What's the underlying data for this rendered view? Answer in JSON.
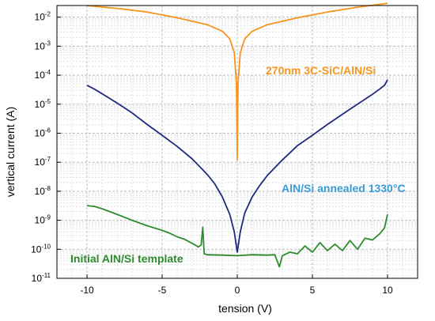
{
  "chart_data": {
    "type": "line",
    "xlabel": "tension (V)",
    "ylabel": "vertical current (A)",
    "xlim": [
      -12,
      12
    ],
    "ylim_log10": [
      -11,
      -1.6
    ],
    "y_scale": "log",
    "grid": true,
    "x_ticks": [
      "-10",
      "-5",
      "0",
      "5",
      "10"
    ],
    "x_tick_values": [
      -10,
      -5,
      0,
      5,
      10
    ],
    "y_tick_exponents": [
      -2,
      -3,
      -4,
      -5,
      -6,
      -7,
      -8,
      -9,
      -10,
      -11
    ],
    "y_tick_base": "10",
    "series": [
      {
        "name": "270nm 3C-SiC/AlN/Si",
        "color": "#f7941d",
        "x": [
          -10,
          -8,
          -6,
          -4,
          -2,
          -1,
          -0.5,
          -0.2,
          -0.05,
          0,
          0.05,
          0.2,
          0.5,
          1,
          2,
          4,
          6,
          8,
          10
        ],
        "y": [
          0.025,
          0.02,
          0.015,
          0.0095,
          0.0055,
          0.0033,
          0.0018,
          0.0006,
          5e-05,
          1.2e-07,
          5e-05,
          0.0006,
          0.0018,
          0.0033,
          0.0055,
          0.0095,
          0.015,
          0.022,
          0.03
        ]
      },
      {
        "name": "AlN/Si annealed 1330°C",
        "color": "#1f2a80",
        "x": [
          -10,
          -9.5,
          -9,
          -8,
          -7,
          -6,
          -5,
          -4,
          -3,
          -2,
          -1.5,
          -1,
          -0.5,
          -0.2,
          0,
          0.2,
          0.5,
          1,
          1.5,
          2,
          3,
          4,
          5,
          6,
          7,
          8,
          9,
          9.5,
          9.8,
          10
        ],
        "y": [
          4.5e-05,
          3.3e-05,
          2.3e-05,
          1.1e-05,
          5e-06,
          2e-06,
          8.5e-07,
          3.5e-07,
          1.3e-07,
          3.8e-08,
          1.8e-08,
          6.5e-09,
          1.6e-09,
          4e-10,
          8e-11,
          4e-10,
          1.8e-09,
          6.5e-09,
          1.6e-08,
          3.5e-08,
          1.2e-07,
          3.7e-07,
          8.5e-07,
          2e-06,
          4.5e-06,
          1e-05,
          2.2e-05,
          3.4e-05,
          4.5e-05,
          7e-05
        ]
      },
      {
        "name": "Initial AlN/Si template",
        "color": "#2e8b2e",
        "x": [
          -10,
          -9.5,
          -9,
          -8,
          -7,
          -6,
          -5,
          -4.5,
          -4,
          -3.5,
          -3,
          -2.8,
          -2.6,
          -2.4,
          -2.3,
          -2.2,
          -2,
          -1,
          0,
          1,
          2,
          2.5,
          2.8,
          3,
          3.5,
          4,
          4.5,
          5,
          5.5,
          6,
          6.5,
          7,
          7.5,
          8,
          8.5,
          9,
          9.5,
          9.8,
          10
        ],
        "y": [
          3.2e-09,
          3e-09,
          2.5e-09,
          1.6e-09,
          1e-09,
          6.5e-10,
          4.5e-10,
          3.6e-10,
          2.7e-10,
          2.2e-10,
          1.6e-10,
          1.4e-10,
          1.2e-10,
          1.4e-10,
          5.8e-10,
          7e-11,
          6.5e-11,
          6.3e-11,
          6e-11,
          6.5e-11,
          6.3e-11,
          6.5e-11,
          2.5e-11,
          6e-11,
          8e-11,
          7e-11,
          1.3e-10,
          8e-11,
          1.7e-10,
          9e-11,
          1.5e-10,
          9e-11,
          2e-10,
          1e-10,
          2.4e-10,
          2.1e-10,
          3.5e-10,
          5.5e-10,
          1.6e-09
        ]
      }
    ]
  }
}
